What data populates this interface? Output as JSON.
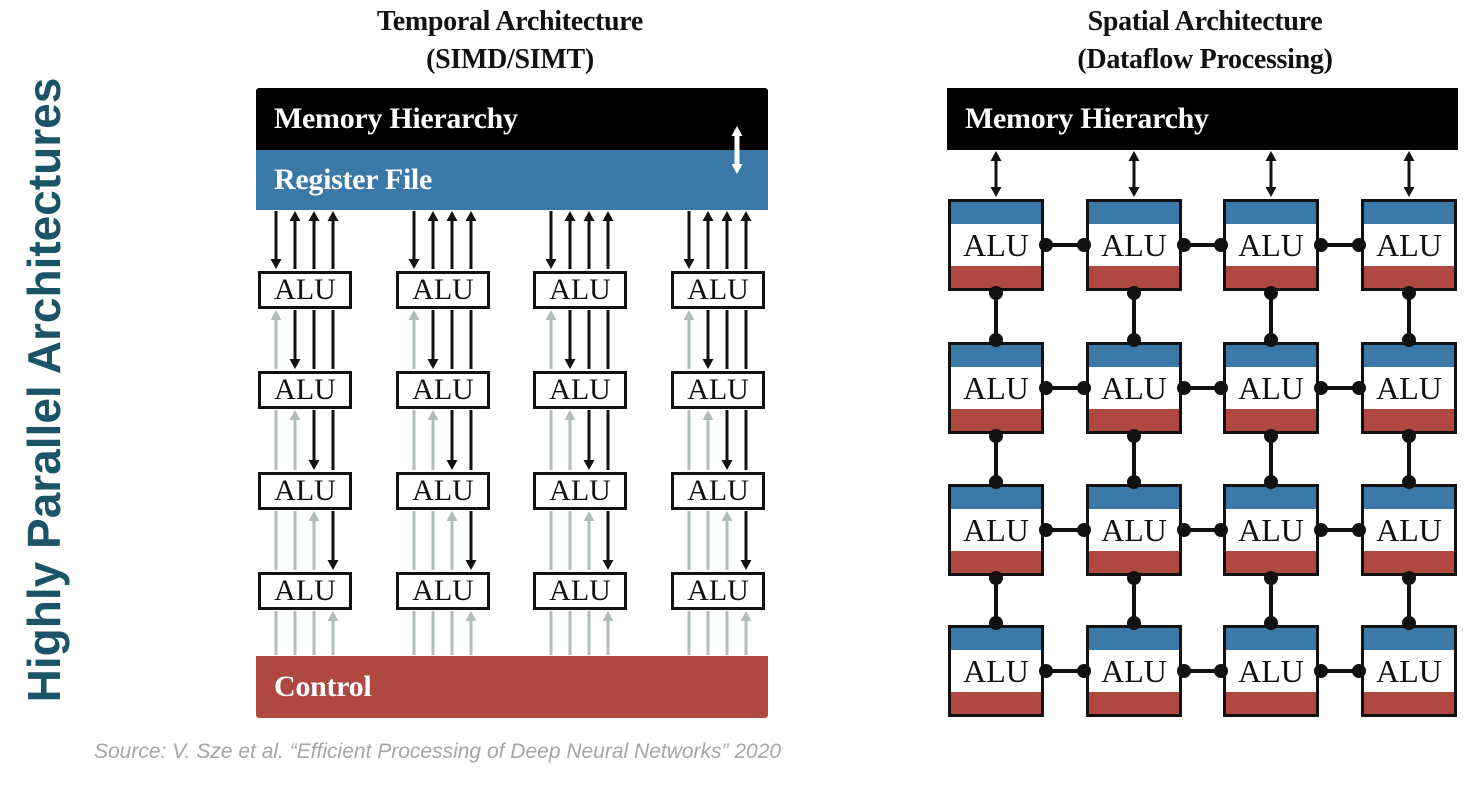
{
  "side_title": "Highly Parallel Architectures",
  "temporal": {
    "title_line1": "Temporal Architecture",
    "title_line2": "(SIMD/SIMT)",
    "memory_label": "Memory Hierarchy",
    "register_label": "Register File",
    "control_label": "Control",
    "alu_label": "ALU",
    "columns": 4,
    "rows": 4
  },
  "spatial": {
    "title_line1": "Spatial Architecture",
    "title_line2": "(Dataflow Processing)",
    "memory_label": "Memory Hierarchy",
    "alu_label": "ALU",
    "columns": 4,
    "rows": 4
  },
  "source": "Source: V. Sze et al. “Efficient Processing of Deep Neural Networks” 2020",
  "colors": {
    "title_teal": "#1b5466",
    "memory_black": "#000000",
    "register_blue": "#3a78a7",
    "control_red": "#b04842",
    "inactive_gray": "#b3bcbc",
    "source_gray": "#a6a6a6"
  }
}
